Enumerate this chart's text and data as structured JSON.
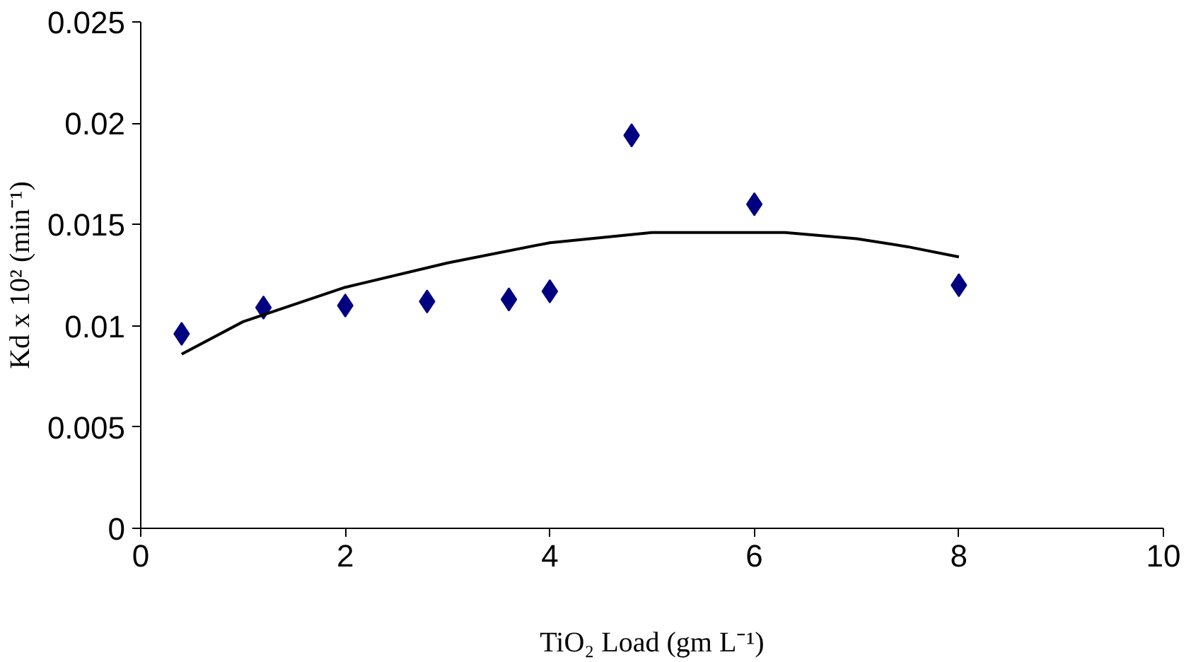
{
  "chart_data": {
    "type": "scatter",
    "xlabel": "TiO₂ Load (gm L⁻¹)",
    "ylabel": "Kd x 10² (min⁻¹)",
    "xlim": [
      0,
      10
    ],
    "xticks": [
      0,
      2,
      4,
      6,
      8,
      10
    ],
    "ylim": [
      0,
      0.025
    ],
    "yticks": [
      0,
      0.005,
      0.01,
      0.015,
      0.02,
      0.025
    ],
    "grid": false,
    "series": [
      {
        "marker": "diamond",
        "color": "#000080",
        "x": [
          0.4,
          1.2,
          2,
          2.8,
          3.6,
          4,
          4.8,
          6,
          8
        ],
        "values": [
          0.0096,
          0.0109,
          0.011,
          0.0112,
          0.0113,
          0.0117,
          0.0194,
          0.016,
          0.012
        ]
      },
      {
        "type": "line",
        "line_style": "solid",
        "color": "#000000",
        "x": [
          0.4,
          1,
          2,
          3,
          4,
          5,
          6.3,
          7,
          7.5,
          8
        ],
        "values": [
          0.0086,
          0.0102,
          0.0119,
          0.0131,
          0.0141,
          0.0146,
          0.0146,
          0.0143,
          0.0139,
          0.0134
        ]
      }
    ]
  }
}
